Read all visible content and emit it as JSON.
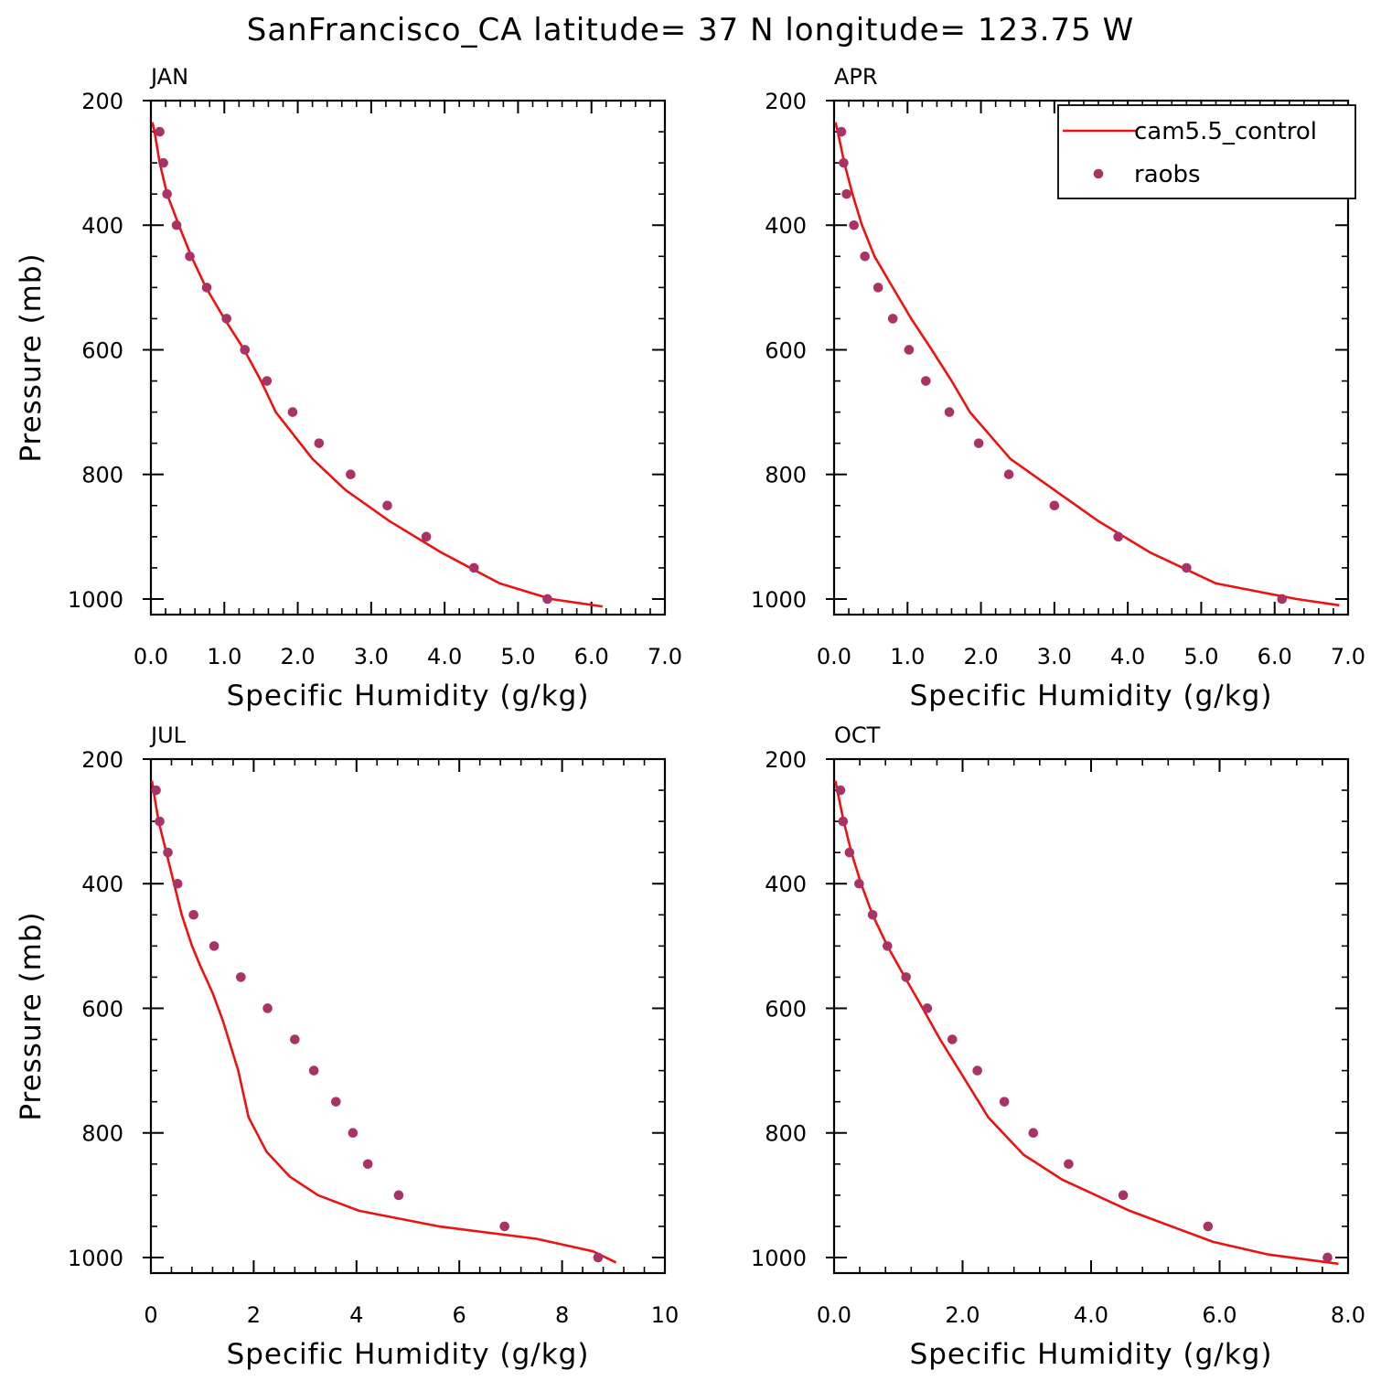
{
  "figure": {
    "title": "SanFrancisco_CA  latitude= 37 N longitude= 123.75 W",
    "colors": {
      "model_line": "#ee1111",
      "obs_marker": "#aa3366",
      "axes": "#000000"
    }
  },
  "legend": {
    "entries": [
      {
        "name": "cam5.5_control",
        "type": "line"
      },
      {
        "name": "raobs",
        "type": "marker"
      }
    ],
    "placement": "top-right of APR panel"
  },
  "chart_data": [
    {
      "type": "line",
      "panel": "JAN",
      "title": "JAN",
      "xlabel": "Specific Humidity (g/kg)",
      "ylabel": "Pressure (mb)",
      "xlim": [
        0,
        7
      ],
      "x_ticks": [
        "0.0",
        "1.0",
        "2.0",
        "3.0",
        "4.0",
        "5.0",
        "6.0",
        "7.0"
      ],
      "ylim": [
        1025,
        200
      ],
      "y_ticks": [
        "200",
        "400",
        "600",
        "800",
        "1000"
      ],
      "model": {
        "p": [
          235,
          250,
          300,
          350,
          400,
          450,
          500,
          550,
          600,
          650,
          700,
          775,
          825,
          875,
          925,
          975,
          1000,
          1012
        ],
        "q": [
          0.02,
          0.05,
          0.12,
          0.22,
          0.38,
          0.55,
          0.75,
          1.0,
          1.27,
          1.5,
          1.7,
          2.2,
          2.65,
          3.25,
          3.95,
          4.75,
          5.45,
          6.15
        ]
      },
      "obs": {
        "p": [
          250,
          300,
          350,
          400,
          450,
          500,
          550,
          600,
          650,
          700,
          750,
          800,
          850,
          900,
          950,
          1000
        ],
        "q": [
          0.12,
          0.17,
          0.22,
          0.35,
          0.53,
          0.76,
          1.03,
          1.28,
          1.58,
          1.93,
          2.29,
          2.72,
          3.22,
          3.75,
          4.4,
          5.4
        ]
      }
    },
    {
      "type": "line",
      "panel": "APR",
      "title": "APR",
      "xlabel": "Specific Humidity (g/kg)",
      "ylabel": "",
      "xlim": [
        0,
        7
      ],
      "x_ticks": [
        "0.0",
        "1.0",
        "2.0",
        "3.0",
        "4.0",
        "5.0",
        "6.0",
        "7.0"
      ],
      "ylim": [
        1025,
        200
      ],
      "y_ticks": [
        "200",
        "400",
        "600",
        "800",
        "1000"
      ],
      "model": {
        "p": [
          235,
          250,
          300,
          350,
          400,
          450,
          500,
          550,
          600,
          650,
          700,
          775,
          825,
          875,
          925,
          975,
          1000,
          1010
        ],
        "q": [
          0.02,
          0.05,
          0.14,
          0.25,
          0.38,
          0.55,
          0.8,
          1.05,
          1.33,
          1.6,
          1.85,
          2.4,
          3.0,
          3.6,
          4.3,
          5.2,
          6.3,
          6.88
        ]
      },
      "obs": {
        "p": [
          250,
          300,
          350,
          400,
          450,
          500,
          550,
          600,
          650,
          700,
          750,
          800,
          850,
          900,
          950,
          1000
        ],
        "q": [
          0.1,
          0.13,
          0.17,
          0.27,
          0.42,
          0.6,
          0.8,
          1.02,
          1.25,
          1.57,
          1.97,
          2.38,
          3.0,
          3.87,
          4.8,
          6.1
        ]
      }
    },
    {
      "type": "line",
      "panel": "JUL",
      "title": "JUL",
      "xlabel": "Specific Humidity (g/kg)",
      "ylabel": "Pressure (mb)",
      "xlim": [
        0,
        10
      ],
      "x_ticks": [
        "0",
        "2",
        "4",
        "6",
        "8",
        "10"
      ],
      "ylim": [
        1025,
        200
      ],
      "y_ticks": [
        "200",
        "400",
        "600",
        "800",
        "1000"
      ],
      "model": {
        "p": [
          235,
          250,
          300,
          350,
          400,
          450,
          500,
          530,
          575,
          620,
          700,
          775,
          830,
          870,
          900,
          925,
          950,
          970,
          990,
          1008
        ],
        "q": [
          0.02,
          0.05,
          0.15,
          0.3,
          0.45,
          0.6,
          0.8,
          0.95,
          1.2,
          1.4,
          1.7,
          1.9,
          2.25,
          2.7,
          3.25,
          4.05,
          5.6,
          7.5,
          8.6,
          9.05
        ]
      },
      "obs": {
        "p": [
          250,
          300,
          350,
          400,
          450,
          500,
          550,
          600,
          650,
          700,
          750,
          800,
          850,
          900,
          950,
          1000
        ],
        "q": [
          0.1,
          0.17,
          0.33,
          0.52,
          0.83,
          1.23,
          1.75,
          2.27,
          2.8,
          3.17,
          3.6,
          3.93,
          4.22,
          4.82,
          6.88,
          8.7
        ]
      }
    },
    {
      "type": "line",
      "panel": "OCT",
      "title": "OCT",
      "xlabel": "Specific Humidity (g/kg)",
      "ylabel": "",
      "xlim": [
        0,
        8
      ],
      "x_ticks": [
        "0.0",
        "2.0",
        "4.0",
        "6.0",
        "8.0"
      ],
      "ylim": [
        1025,
        200
      ],
      "y_ticks": [
        "200",
        "400",
        "600",
        "800",
        "1000"
      ],
      "model": {
        "p": [
          235,
          250,
          300,
          350,
          400,
          450,
          500,
          550,
          600,
          650,
          700,
          775,
          835,
          875,
          925,
          975,
          995,
          1010
        ],
        "q": [
          0.02,
          0.05,
          0.15,
          0.27,
          0.42,
          0.6,
          0.83,
          1.1,
          1.38,
          1.65,
          1.95,
          2.4,
          2.95,
          3.55,
          4.6,
          5.9,
          6.75,
          7.85
        ]
      },
      "obs": {
        "p": [
          250,
          300,
          350,
          400,
          450,
          500,
          550,
          600,
          650,
          700,
          750,
          800,
          850,
          900,
          950,
          1000
        ],
        "q": [
          0.1,
          0.14,
          0.24,
          0.39,
          0.6,
          0.83,
          1.12,
          1.45,
          1.84,
          2.23,
          2.65,
          3.1,
          3.65,
          4.5,
          5.82,
          7.68
        ]
      }
    }
  ]
}
